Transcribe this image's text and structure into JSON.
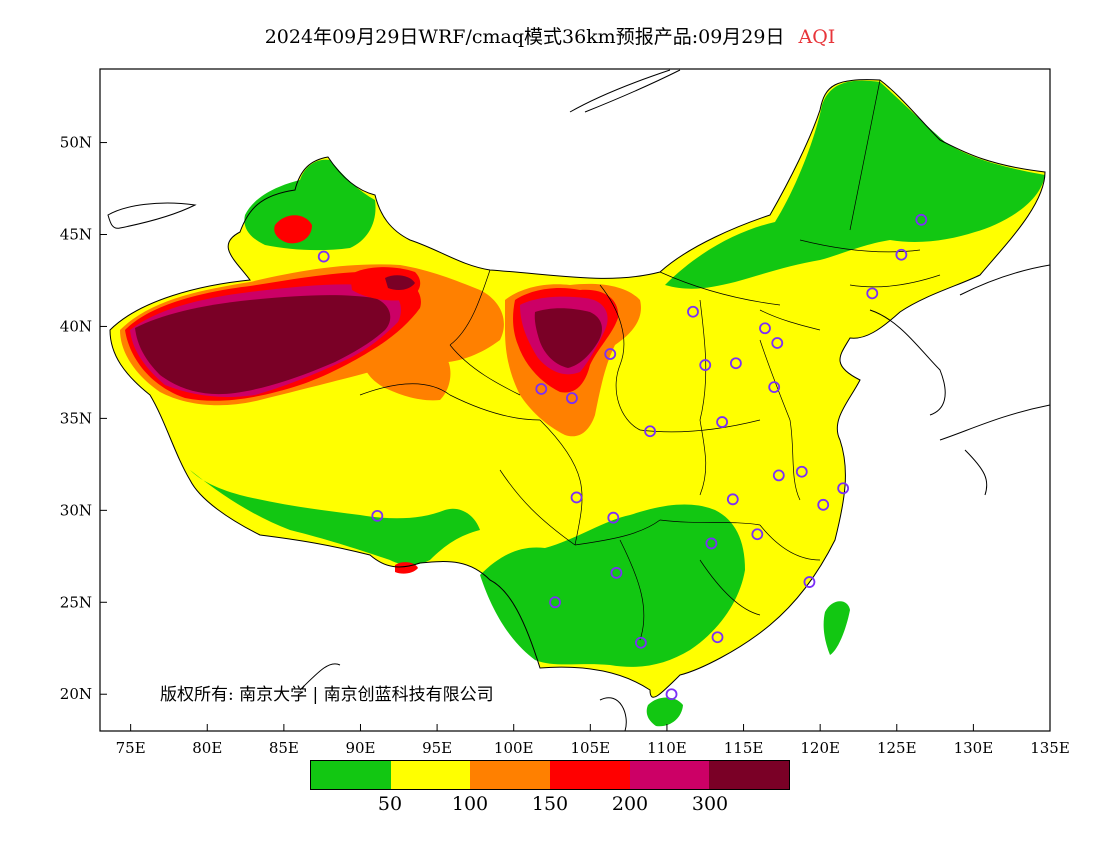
{
  "title": {
    "text": "2024年09月29日WRF/cmaq模式36km预报产品:09月29日",
    "product": "AQI"
  },
  "axes": {
    "lon_ticks": [
      "75E",
      "80E",
      "85E",
      "90E",
      "95E",
      "100E",
      "105E",
      "110E",
      "115E",
      "120E",
      "125E",
      "130E",
      "135E"
    ],
    "lat_ticks": [
      "50N",
      "45N",
      "40N",
      "35N",
      "30N",
      "25N",
      "20N"
    ],
    "lon_range": [
      73,
      135
    ],
    "lat_range": [
      18,
      54
    ]
  },
  "copyright": "版权所有: 南京大学 | 南京创蓝科技有限公司",
  "legend": {
    "colors": [
      "#12c712",
      "#ffff00",
      "#ff8000",
      "#ff0000",
      "#cc0066",
      "#7a0026"
    ],
    "labels": [
      "50",
      "100",
      "150",
      "200",
      "300"
    ]
  },
  "stations": [
    {
      "lon": 87.6,
      "lat": 43.8
    },
    {
      "lon": 91.1,
      "lat": 29.7
    },
    {
      "lon": 101.8,
      "lat": 36.6
    },
    {
      "lon": 103.8,
      "lat": 36.1
    },
    {
      "lon": 106.3,
      "lat": 38.5
    },
    {
      "lon": 111.7,
      "lat": 40.8
    },
    {
      "lon": 116.4,
      "lat": 39.9
    },
    {
      "lon": 117.2,
      "lat": 39.1
    },
    {
      "lon": 114.5,
      "lat": 38.0
    },
    {
      "lon": 112.5,
      "lat": 37.9
    },
    {
      "lon": 117.0,
      "lat": 36.7
    },
    {
      "lon": 113.6,
      "lat": 34.8
    },
    {
      "lon": 108.9,
      "lat": 34.3
    },
    {
      "lon": 104.1,
      "lat": 30.7
    },
    {
      "lon": 106.5,
      "lat": 29.6
    },
    {
      "lon": 114.3,
      "lat": 30.6
    },
    {
      "lon": 112.9,
      "lat": 28.2
    },
    {
      "lon": 115.9,
      "lat": 28.7
    },
    {
      "lon": 117.3,
      "lat": 31.9
    },
    {
      "lon": 118.8,
      "lat": 32.1
    },
    {
      "lon": 120.2,
      "lat": 30.3
    },
    {
      "lon": 121.5,
      "lat": 31.2
    },
    {
      "lon": 119.3,
      "lat": 26.1
    },
    {
      "lon": 113.3,
      "lat": 23.1
    },
    {
      "lon": 108.3,
      "lat": 22.8
    },
    {
      "lon": 110.3,
      "lat": 20.0
    },
    {
      "lon": 106.7,
      "lat": 26.6
    },
    {
      "lon": 102.7,
      "lat": 25.0
    },
    {
      "lon": 123.4,
      "lat": 41.8
    },
    {
      "lon": 125.3,
      "lat": 43.9
    },
    {
      "lon": 126.6,
      "lat": 45.8
    }
  ]
}
